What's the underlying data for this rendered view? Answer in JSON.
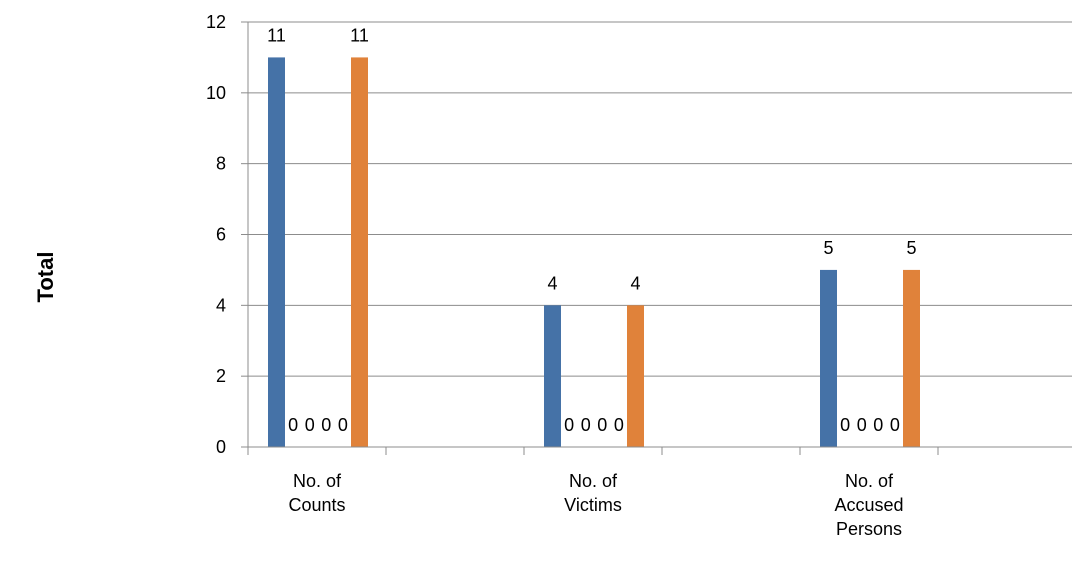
{
  "chart_data": {
    "type": "bar",
    "title": "",
    "xlabel": "",
    "ylabel": "Total",
    "ylim": [
      0,
      12
    ],
    "yticks": [
      0,
      2,
      4,
      6,
      8,
      10,
      12
    ],
    "grid": true,
    "legend": "none",
    "categories": [
      [
        "No. of",
        "Counts"
      ],
      [
        "No. of",
        "Victims"
      ],
      [
        "No. of",
        "Accused",
        "Persons"
      ]
    ],
    "series": [
      {
        "color": "#4572A7",
        "values": [
          11,
          4,
          5
        ]
      },
      {
        "color": "#4572A7",
        "values": [
          0,
          0,
          0
        ]
      },
      {
        "color": "#4572A7",
        "values": [
          0,
          0,
          0
        ]
      },
      {
        "color": "#4572A7",
        "values": [
          0,
          0,
          0
        ]
      },
      {
        "color": "#4572A7",
        "values": [
          0,
          0,
          0
        ]
      },
      {
        "color": "#E0823A",
        "values": [
          11,
          4,
          5
        ]
      }
    ]
  }
}
